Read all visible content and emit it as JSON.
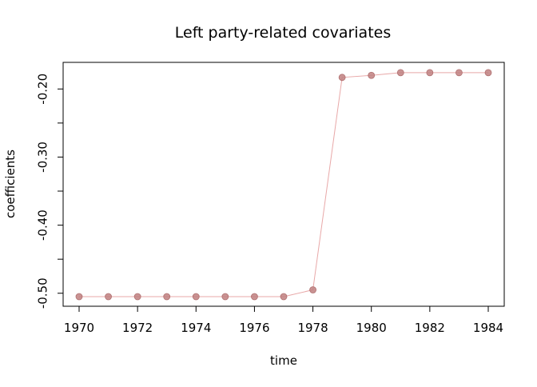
{
  "chart_data": {
    "type": "line",
    "title": "Left party-related covariates",
    "xlabel": "time",
    "ylabel": "coefficients",
    "xlim": [
      1970,
      1984
    ],
    "ylim": [
      -0.505,
      -0.175
    ],
    "x_ticks": [
      1970,
      1972,
      1974,
      1976,
      1978,
      1980,
      1982,
      1984
    ],
    "x_tick_labels": [
      "1970",
      "1972",
      "1974",
      "1976",
      "1978",
      "1980",
      "1982",
      "1984"
    ],
    "y_ticks": [
      -0.5,
      -0.45,
      -0.4,
      -0.35,
      -0.3,
      -0.25,
      -0.2
    ],
    "y_tick_labels": [
      "-0.50",
      "",
      "-0.40",
      "",
      "-0.30",
      "",
      "-0.20"
    ],
    "grid": false,
    "legend": "none",
    "series": [
      {
        "color": "#c08080",
        "line_color": "#e8a8a8",
        "x": [
          1970,
          1971,
          1972,
          1973,
          1974,
          1975,
          1976,
          1977,
          1978,
          1979,
          1980,
          1981,
          1982,
          1983,
          1984
        ],
        "y": [
          -0.505,
          -0.505,
          -0.505,
          -0.505,
          -0.505,
          -0.505,
          -0.505,
          -0.505,
          -0.495,
          -0.183,
          -0.18,
          -0.176,
          -0.176,
          -0.176,
          -0.176
        ]
      }
    ]
  }
}
